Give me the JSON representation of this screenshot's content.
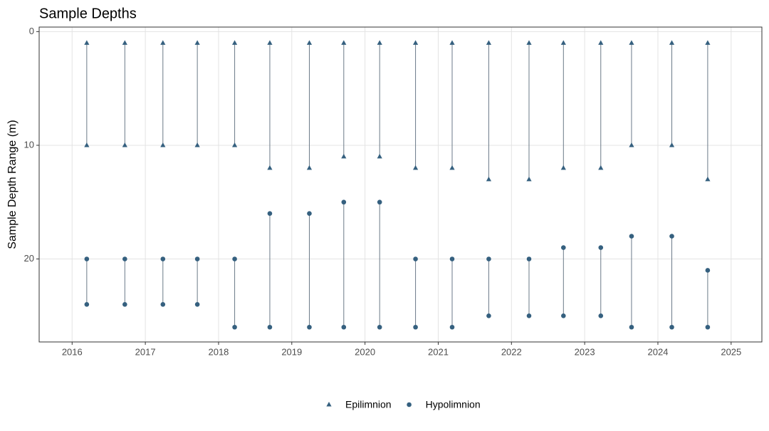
{
  "chart_data": {
    "type": "range_dot",
    "title": "Sample Depths",
    "y_label": "Sample Depth Range (m)",
    "y_reversed": true,
    "xlim": [
      2015.55,
      2025.42
    ],
    "xticks": [
      2016,
      2017,
      2018,
      2019,
      2020,
      2021,
      2022,
      2023,
      2024,
      2025
    ],
    "ylim": [
      -0.4,
      27.3
    ],
    "yticks": [
      0,
      10,
      20
    ],
    "grid": true,
    "legend_position": "bottom",
    "series": [
      {
        "name": "Epilimnion",
        "color": "#35607f",
        "marker": "triangle",
        "x": [
          2016.2,
          2016.72,
          2017.24,
          2017.71,
          2018.22,
          2018.7,
          2019.24,
          2019.71,
          2020.2,
          2020.69,
          2021.19,
          2021.69,
          2022.24,
          2022.71,
          2023.22,
          2023.64,
          2024.19,
          2024.68
        ],
        "min": [
          1,
          1,
          1,
          1,
          1,
          1,
          1,
          1,
          1,
          1,
          1,
          1,
          1,
          1,
          1,
          1,
          1,
          1
        ],
        "max": [
          10,
          10,
          10,
          10,
          10,
          12,
          12,
          11,
          11,
          12,
          12,
          13,
          13,
          12,
          12,
          10,
          10,
          13
        ]
      },
      {
        "name": "Hypolimnion",
        "color": "#35607f",
        "marker": "circle",
        "x": [
          2016.2,
          2016.72,
          2017.24,
          2017.71,
          2018.22,
          2018.7,
          2019.24,
          2019.71,
          2020.2,
          2020.69,
          2021.19,
          2021.69,
          2022.24,
          2022.71,
          2023.22,
          2023.64,
          2024.19,
          2024.68
        ],
        "min": [
          20,
          20,
          20,
          20,
          20,
          16,
          16,
          15,
          15,
          20,
          20,
          20,
          20,
          19,
          19,
          18,
          18,
          21
        ],
        "max": [
          24,
          24,
          24,
          24,
          26,
          26,
          26,
          26,
          26,
          26,
          26,
          25,
          25,
          25,
          25,
          26,
          26,
          26
        ]
      }
    ]
  }
}
